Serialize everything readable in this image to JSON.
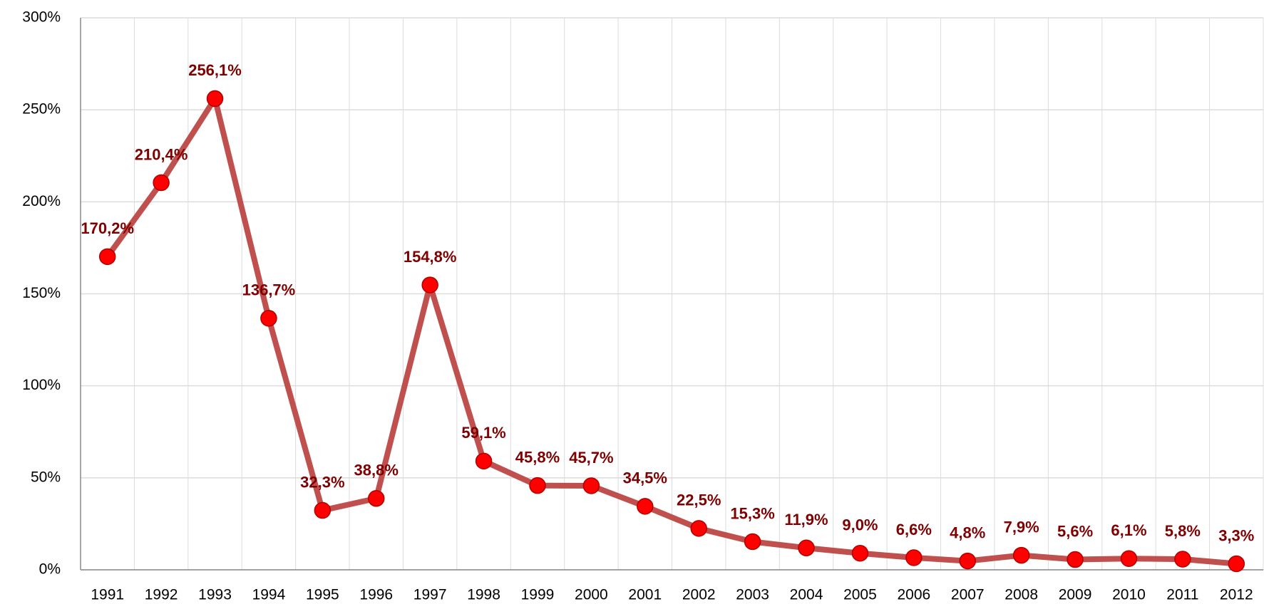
{
  "chart_data": {
    "type": "line",
    "categories": [
      "1991",
      "1992",
      "1993",
      "1994",
      "1995",
      "1996",
      "1997",
      "1998",
      "1999",
      "2000",
      "2001",
      "2002",
      "2003",
      "2004",
      "2005",
      "2006",
      "2007",
      "2008",
      "2009",
      "2010",
      "2011",
      "2012"
    ],
    "series": [
      {
        "color": "#c0504d",
        "marker_color": "#ff0000",
        "label_color": "#7f0000",
        "values": [
          170.2,
          210.4,
          256.1,
          136.7,
          32.3,
          38.8,
          154.8,
          59.1,
          45.8,
          45.7,
          34.5,
          22.5,
          15.3,
          11.9,
          9.0,
          6.6,
          4.8,
          7.9,
          5.6,
          6.1,
          5.8,
          3.3
        ],
        "value_labels": [
          "170,2%",
          "210,4%",
          "256,1%",
          "136,7%",
          "32,3%",
          "38,8%",
          "154,8%",
          "59,1%",
          "45,8%",
          "45,7%",
          "34,5%",
          "22,5%",
          "15,3%",
          "11,9%",
          "9,0%",
          "6,6%",
          "4,8%",
          "7,9%",
          "5,6%",
          "6,1%",
          "5,8%",
          "3,3%"
        ]
      }
    ],
    "ylim": [
      0,
      300
    ],
    "yticks": [
      {
        "value": 0,
        "label": "0%"
      },
      {
        "value": 50,
        "label": "50%"
      },
      {
        "value": 100,
        "label": "100%"
      },
      {
        "value": 150,
        "label": "150%"
      },
      {
        "value": 200,
        "label": "200%"
      },
      {
        "value": 250,
        "label": "250%"
      },
      {
        "value": 300,
        "label": "300%"
      }
    ],
    "grid": true
  }
}
